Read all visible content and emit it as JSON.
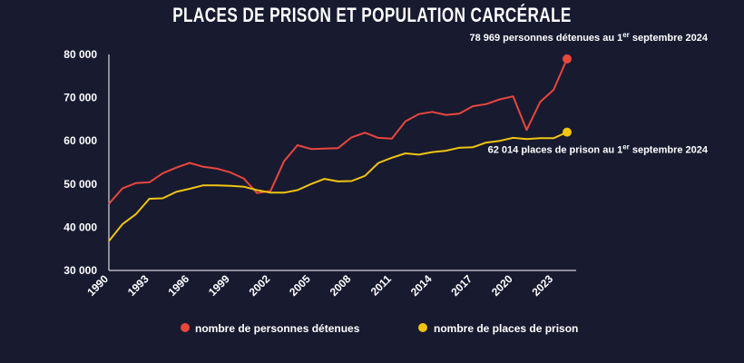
{
  "title": "PLACES DE PRISON ET POPULATION CARCÉRALE",
  "chart_data": {
    "type": "line",
    "ylim": [
      30000,
      80000
    ],
    "xlim": [
      1990,
      2024
    ],
    "ytick_values": [
      30000,
      40000,
      50000,
      60000,
      70000,
      80000
    ],
    "ytick_labels": [
      "30 000",
      "40 000",
      "50 000",
      "60 000",
      "70 000",
      "80 000"
    ],
    "xtick_values": [
      1990,
      1993,
      1996,
      1999,
      2002,
      2005,
      2008,
      2011,
      2014,
      2017,
      2020,
      2023
    ],
    "xtick_labels": [
      "1990",
      "1993",
      "1996",
      "1999",
      "2002",
      "2005",
      "2008",
      "2011",
      "2014",
      "2017",
      "2020",
      "2023"
    ],
    "grid": false,
    "legend": "bottom",
    "x": [
      1990,
      1991,
      1992,
      1993,
      1994,
      1995,
      1996,
      1997,
      1998,
      1999,
      2000,
      2001,
      2002,
      2003,
      2004,
      2005,
      2006,
      2007,
      2008,
      2009,
      2010,
      2011,
      2012,
      2013,
      2014,
      2015,
      2016,
      2017,
      2018,
      2019,
      2020,
      2021,
      2022,
      2023,
      2024
    ],
    "series": [
      {
        "name": "nombre de personnes détenues",
        "color": "#e8473c",
        "values": [
          45400,
          49000,
          50200,
          50400,
          52500,
          53800,
          54900,
          54000,
          53600,
          52700,
          51300,
          47900,
          48400,
          55300,
          59000,
          58100,
          58200,
          58300,
          60800,
          61900,
          60700,
          60500,
          64500,
          66200,
          66700,
          66000,
          66300,
          68000,
          68500,
          69600,
          70300,
          62500,
          69000,
          71800,
          78969
        ]
      },
      {
        "name": "nombre de places de prison",
        "color": "#f1c40f",
        "values": [
          36800,
          40700,
          43000,
          46600,
          46700,
          48200,
          48900,
          49700,
          49700,
          49600,
          49400,
          48600,
          48000,
          48000,
          48600,
          50000,
          51200,
          50600,
          50700,
          51900,
          54900,
          56100,
          57100,
          56800,
          57400,
          57700,
          58400,
          58500,
          59600,
          60000,
          60700,
          60400,
          60600,
          60600,
          62014
        ]
      }
    ],
    "annotations": [
      {
        "series": 0,
        "base": "78 969 personnes détenues au 1",
        "sup": "er",
        "tail": " septembre 2024"
      },
      {
        "series": 1,
        "base": "62 014 places de prison au 1",
        "sup": "er",
        "tail": " septembre 2024"
      }
    ]
  }
}
